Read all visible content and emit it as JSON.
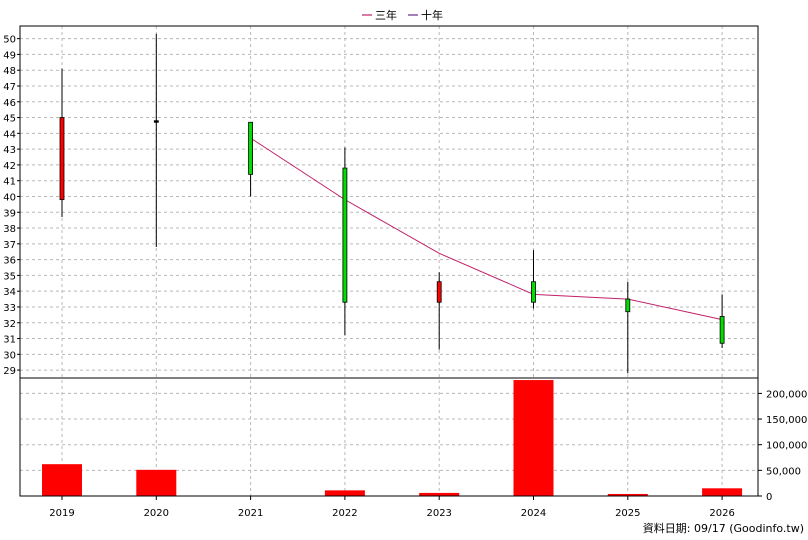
{
  "chart_data": {
    "type": "candlestick",
    "legend": [
      {
        "name": "三年",
        "color": "#c0206a"
      },
      {
        "name": "十年",
        "color": "#6a2a8a"
      }
    ],
    "price_axis": {
      "ylim": [
        28.5,
        50.8
      ],
      "ticks": [
        29,
        30,
        31,
        32,
        33,
        34,
        35,
        36,
        37,
        38,
        39,
        40,
        41,
        42,
        43,
        44,
        45,
        46,
        47,
        48,
        49,
        50
      ]
    },
    "volume_axis": {
      "ylim": [
        0,
        230000
      ],
      "ticks": [
        0,
        50000,
        100000,
        150000,
        200000
      ],
      "tick_labels": [
        "0",
        "50,000",
        "100,000",
        "150,000",
        "200,000"
      ]
    },
    "years": [
      "2019",
      "2020",
      "2021",
      "2022",
      "2023",
      "2024",
      "2025",
      "2026"
    ],
    "candles": [
      {
        "year": "2019",
        "open": 39.8,
        "close": 45.0,
        "high": 48.1,
        "low": 38.7,
        "color": "#ff0000"
      },
      {
        "year": "2020",
        "open": 44.8,
        "close": 44.7,
        "high": 50.3,
        "low": 36.8,
        "color": "#000000"
      },
      {
        "year": "2021",
        "open": 44.7,
        "close": 41.4,
        "high": 44.7,
        "low": 40.0,
        "color": "#00dd00"
      },
      {
        "year": "2022",
        "open": 41.8,
        "close": 33.3,
        "high": 43.1,
        "low": 31.2,
        "color": "#00dd00"
      },
      {
        "year": "2023",
        "open": 33.3,
        "close": 34.6,
        "high": 35.2,
        "low": 30.3,
        "color": "#ff0000"
      },
      {
        "year": "2024",
        "open": 34.6,
        "close": 33.3,
        "high": 36.6,
        "low": 32.9,
        "color": "#00dd00"
      },
      {
        "year": "2025",
        "open": 33.5,
        "close": 32.7,
        "high": 34.6,
        "low": 28.8,
        "color": "#00dd00"
      },
      {
        "year": "2026",
        "open": 32.4,
        "close": 30.7,
        "high": 33.8,
        "low": 30.4,
        "color": "#00dd00"
      }
    ],
    "ma3": [
      {
        "year": "2021",
        "value": 43.7
      },
      {
        "year": "2022",
        "value": 39.8
      },
      {
        "year": "2023",
        "value": 36.4
      },
      {
        "year": "2024",
        "value": 33.8
      },
      {
        "year": "2025",
        "value": 33.5
      },
      {
        "year": "2026",
        "value": 32.2
      }
    ],
    "volume": [
      {
        "year": "2019",
        "value": 62000
      },
      {
        "year": "2020",
        "value": 51000
      },
      {
        "year": "2021",
        "value": 0
      },
      {
        "year": "2022",
        "value": 11000
      },
      {
        "year": "2023",
        "value": 6000
      },
      {
        "year": "2024",
        "value": 226000
      },
      {
        "year": "2025",
        "value": 4000
      },
      {
        "year": "2026",
        "value": 15000
      }
    ],
    "volume_color": "#ff0000",
    "grid": true
  },
  "footer": "資料日期: 09/17 (Goodinfo.tw)"
}
